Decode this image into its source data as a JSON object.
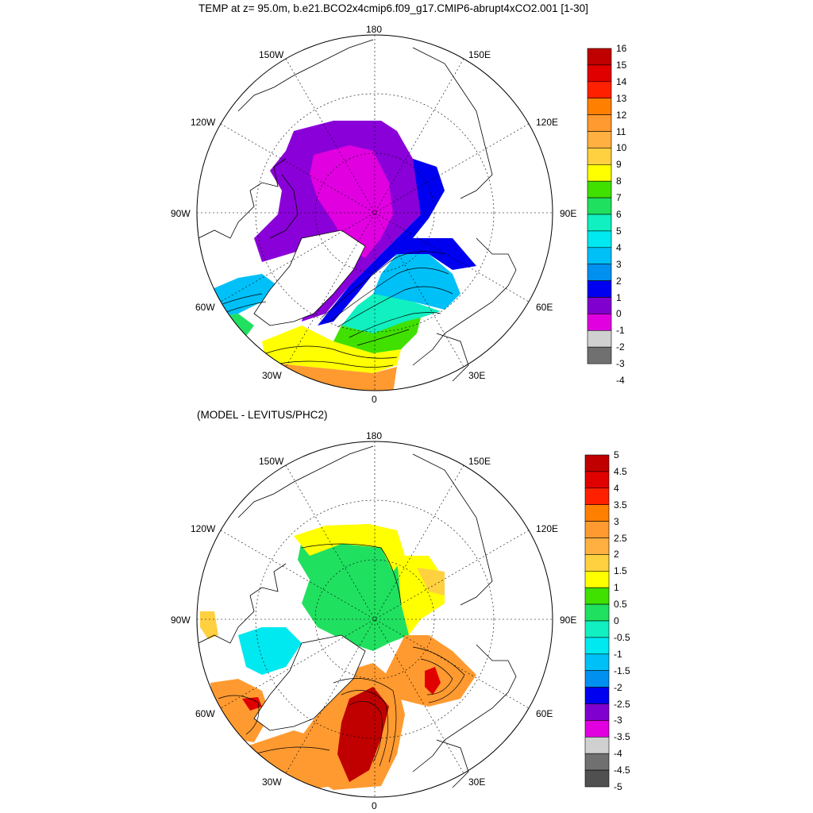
{
  "title": "TEMP at z=  95.0m, b.e21.BCO2x4cmip6.f09_g17.CMIP6-abrupt4xCO2.001 [1-30]",
  "subtitle": "(MODEL - LEVITUS/PHC2)",
  "lon_labels": {
    "top": "180",
    "bottom": "0",
    "left": "90W",
    "right": "90E",
    "nw150": "150W",
    "nw120": "120W",
    "sw60": "60W",
    "sw30": "30W",
    "ne150": "150E",
    "ne120": "120E",
    "se60": "60E",
    "se30": "30E"
  },
  "colorbar1": {
    "labels": [
      "16",
      "15",
      "14",
      "13",
      "12",
      "11",
      "10",
      "9",
      "8",
      "7",
      "6",
      "5",
      "4",
      "3",
      "2",
      "1",
      "0",
      "-1",
      "-2",
      "-3",
      "-4"
    ],
    "colors": [
      "#c00000",
      "#e00000",
      "#ff2000",
      "#ff8000",
      "#ff9a30",
      "#ffb040",
      "#ffd040",
      "#ffff00",
      "#40e000",
      "#20e060",
      "#10f0c0",
      "#00e8f0",
      "#00c0f8",
      "#0090f0",
      "#0000f0",
      "#8000d0",
      "#e000e0",
      "#d0d0d0",
      "#707070"
    ]
  },
  "colorbar2": {
    "labels": [
      "5",
      "4.5",
      "4",
      "3.5",
      "3",
      "2.5",
      "2",
      "1.5",
      "1",
      "0.5",
      "0",
      "-0.5",
      "-1",
      "-1.5",
      "-2",
      "-2.5",
      "-3",
      "-3.5",
      "-4",
      "-4.5",
      "-5"
    ],
    "colors": [
      "#c00000",
      "#e00000",
      "#ff2000",
      "#ff8000",
      "#ff9a30",
      "#ffb040",
      "#ffd040",
      "#ffff00",
      "#40e000",
      "#20e060",
      "#10f0c0",
      "#00e8f0",
      "#00c0f8",
      "#0090f0",
      "#0000f0",
      "#8000d0",
      "#e000e0",
      "#d0d0d0",
      "#707070",
      "#505050"
    ]
  }
}
